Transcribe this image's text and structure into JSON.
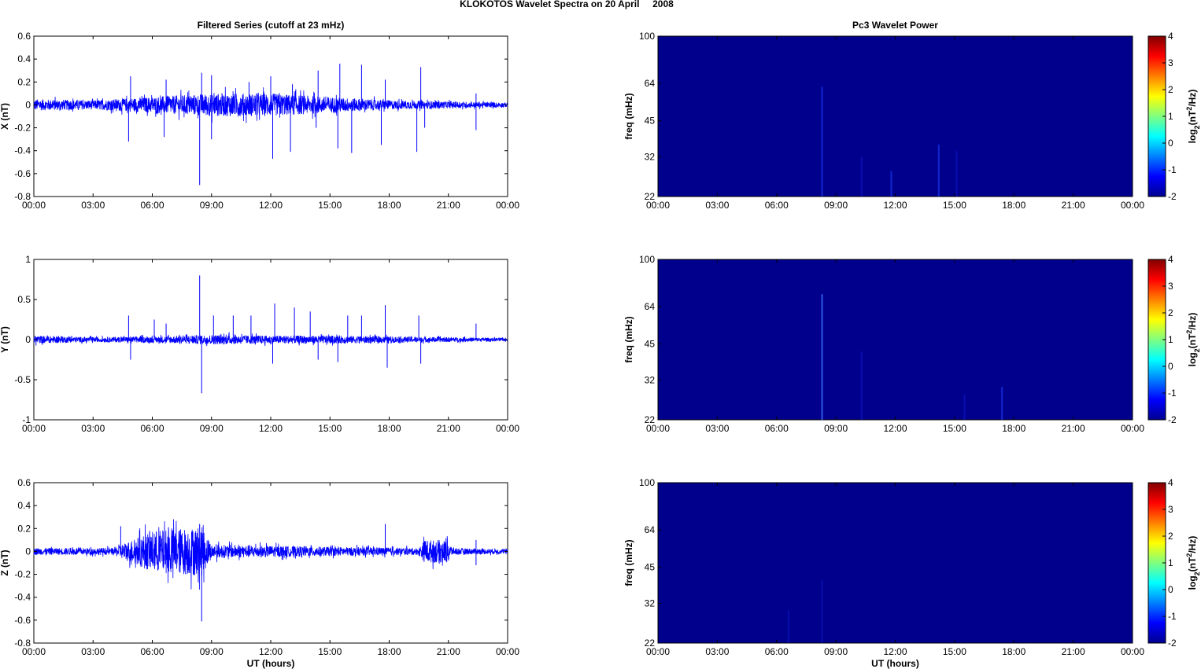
{
  "title": "KLOKOTOS Wavelet Spectra on 20 April     2008",
  "colors": {
    "trace": "#0000ff",
    "spectrum_bg": "#00008c",
    "axis": "#000000"
  },
  "chart_data": [
    {
      "type": "line",
      "panel": "time-series-x",
      "title": "Filtered Series (cutoff at 23 mHz)",
      "xlabel": "",
      "ylabel": "X (nT)",
      "xlim": [
        0,
        24
      ],
      "ylim": [
        -0.8,
        0.6
      ],
      "xticks": [
        "00:00",
        "03:00",
        "06:00",
        "09:00",
        "12:00",
        "15:00",
        "18:00",
        "21:00",
        "00:00"
      ],
      "yticks": [
        "0.6",
        "0.4",
        "0.2",
        "0",
        "-0.2",
        "-0.4",
        "-0.6",
        "-0.8"
      ],
      "ytick_values": [
        0.6,
        0.4,
        0.2,
        0,
        -0.2,
        -0.4,
        -0.6,
        -0.8
      ],
      "noise_envelope": [
        [
          0,
          0.05
        ],
        [
          3,
          0.04
        ],
        [
          6,
          0.07
        ],
        [
          9,
          0.1
        ],
        [
          12,
          0.1
        ],
        [
          14,
          0.08
        ],
        [
          18,
          0.04
        ],
        [
          21,
          0.03
        ],
        [
          24,
          0.02
        ]
      ],
      "spikes": [
        [
          4.9,
          0.25
        ],
        [
          4.8,
          -0.32
        ],
        [
          6.7,
          0.22
        ],
        [
          6.6,
          -0.28
        ],
        [
          8.4,
          -0.7
        ],
        [
          8.5,
          0.28
        ],
        [
          9.0,
          0.26
        ],
        [
          9.0,
          -0.3
        ],
        [
          10.9,
          0.2
        ],
        [
          12.1,
          -0.47
        ],
        [
          12.0,
          0.25
        ],
        [
          13.0,
          -0.41
        ],
        [
          13.1,
          0.18
        ],
        [
          14.4,
          0.3
        ],
        [
          14.3,
          -0.2
        ],
        [
          15.4,
          -0.38
        ],
        [
          15.5,
          0.36
        ],
        [
          16.1,
          -0.42
        ],
        [
          16.6,
          0.35
        ],
        [
          17.6,
          -0.35
        ],
        [
          17.8,
          0.22
        ],
        [
          19.4,
          -0.41
        ],
        [
          19.6,
          0.33
        ],
        [
          19.8,
          -0.2
        ],
        [
          22.4,
          -0.22
        ],
        [
          22.4,
          0.1
        ]
      ]
    },
    {
      "type": "line",
      "panel": "time-series-y",
      "xlabel": "",
      "ylabel": "Y (nT)",
      "xlim": [
        0,
        24
      ],
      "ylim": [
        -1,
        1
      ],
      "xticks": [
        "00:00",
        "03:00",
        "06:00",
        "09:00",
        "12:00",
        "15:00",
        "18:00",
        "21:00",
        "00:00"
      ],
      "yticks": [
        "1",
        "0.5",
        "0",
        "-0.5",
        "-1"
      ],
      "ytick_values": [
        1,
        0.5,
        0,
        -0.5,
        -1
      ],
      "noise_envelope": [
        [
          0,
          0.05
        ],
        [
          3,
          0.03
        ],
        [
          6,
          0.04
        ],
        [
          9,
          0.06
        ],
        [
          12,
          0.05
        ],
        [
          15,
          0.05
        ],
        [
          18,
          0.04
        ],
        [
          21,
          0.03
        ],
        [
          24,
          0.02
        ]
      ],
      "spikes": [
        [
          4.8,
          0.3
        ],
        [
          4.9,
          -0.25
        ],
        [
          6.1,
          0.25
        ],
        [
          6.7,
          0.2
        ],
        [
          8.4,
          0.8
        ],
        [
          8.5,
          -0.67
        ],
        [
          9.1,
          0.3
        ],
        [
          10.1,
          0.3
        ],
        [
          11.0,
          0.3
        ],
        [
          12.2,
          0.45
        ],
        [
          12.1,
          -0.3
        ],
        [
          13.2,
          0.4
        ],
        [
          14.0,
          0.35
        ],
        [
          14.4,
          -0.25
        ],
        [
          15.4,
          -0.28
        ],
        [
          15.9,
          0.3
        ],
        [
          16.6,
          0.3
        ],
        [
          17.8,
          0.43
        ],
        [
          17.9,
          -0.35
        ],
        [
          19.5,
          0.3
        ],
        [
          19.6,
          -0.3
        ],
        [
          22.4,
          0.2
        ]
      ]
    },
    {
      "type": "line",
      "panel": "time-series-z",
      "xlabel": "UT (hours)",
      "ylabel": "Z (nT)",
      "xlim": [
        0,
        24
      ],
      "ylim": [
        -0.8,
        0.6
      ],
      "xticks": [
        "00:00",
        "03:00",
        "06:00",
        "09:00",
        "12:00",
        "15:00",
        "18:00",
        "21:00",
        "00:00"
      ],
      "yticks": [
        "0.6",
        "0.4",
        "0.2",
        "0",
        "-0.2",
        "-0.4",
        "-0.6",
        "-0.8"
      ],
      "ytick_values": [
        0.6,
        0.4,
        0.2,
        0,
        -0.2,
        -0.4,
        -0.6,
        -0.8
      ],
      "noise_envelope": [
        [
          0,
          0.03
        ],
        [
          4,
          0.03
        ],
        [
          6,
          0.18
        ],
        [
          8.5,
          0.22
        ],
        [
          9,
          0.06
        ],
        [
          12,
          0.05
        ],
        [
          15,
          0.04
        ],
        [
          19.5,
          0.03
        ],
        [
          19.8,
          0.1
        ],
        [
          21,
          0.1
        ],
        [
          21.2,
          0.03
        ],
        [
          24,
          0.02
        ]
      ],
      "spikes": [
        [
          4.4,
          0.22
        ],
        [
          8.5,
          -0.61
        ],
        [
          8.4,
          0.24
        ],
        [
          17.8,
          0.24
        ],
        [
          22.4,
          0.1
        ],
        [
          22.4,
          -0.12
        ]
      ]
    },
    {
      "type": "heatmap",
      "panel": "wavelet-x",
      "title": "Pc3 Wavelet Power",
      "ylabel": "freq (mHz)",
      "yscale": "log",
      "ylim": [
        22,
        100
      ],
      "yticks": [
        "100",
        "64",
        "45",
        "32",
        "22"
      ],
      "ytick_values": [
        100,
        64,
        45,
        32,
        22
      ],
      "xlim": [
        0,
        24
      ],
      "xticks": [
        "00:00",
        "03:00",
        "06:00",
        "09:00",
        "12:00",
        "15:00",
        "18:00",
        "21:00",
        "00:00"
      ],
      "colorbar_label": "log2(nT2/Hz)",
      "clim": [
        -2,
        4
      ],
      "colorbar_ticks": [
        "4",
        "3",
        "2",
        "1",
        "0",
        "-1",
        "-2"
      ],
      "colorbar_tick_values": [
        4,
        3,
        2,
        1,
        0,
        -1,
        -2
      ],
      "background_value": -2,
      "features": [
        [
          8.3,
          62,
          -1.4
        ],
        [
          10.3,
          32,
          -1.6
        ],
        [
          11.8,
          28,
          -1.4
        ],
        [
          14.2,
          36,
          -1.4
        ],
        [
          15.1,
          34,
          -1.6
        ]
      ]
    },
    {
      "type": "heatmap",
      "panel": "wavelet-y",
      "ylabel": "freq (mHz)",
      "yscale": "log",
      "ylim": [
        22,
        100
      ],
      "yticks": [
        "100",
        "64",
        "45",
        "32",
        "22"
      ],
      "ytick_values": [
        100,
        64,
        45,
        32,
        22
      ],
      "xlim": [
        0,
        24
      ],
      "xticks": [
        "00:00",
        "03:00",
        "06:00",
        "09:00",
        "12:00",
        "15:00",
        "18:00",
        "21:00",
        "00:00"
      ],
      "colorbar_label": "log2(nT2/Hz)",
      "clim": [
        -2,
        4
      ],
      "colorbar_ticks": [
        "4",
        "3",
        "2",
        "1",
        "0",
        "-1",
        "-2"
      ],
      "colorbar_tick_values": [
        4,
        3,
        2,
        1,
        0,
        -1,
        -2
      ],
      "background_value": -2,
      "features": [
        [
          8.3,
          72,
          -1.0
        ],
        [
          10.3,
          42,
          -1.5
        ],
        [
          15.5,
          28,
          -1.6
        ],
        [
          17.4,
          30,
          -1.3
        ]
      ]
    },
    {
      "type": "heatmap",
      "panel": "wavelet-z",
      "xlabel": "UT (hours)",
      "ylabel": "freq (mHz)",
      "yscale": "log",
      "ylim": [
        22,
        100
      ],
      "yticks": [
        "100",
        "64",
        "45",
        "32",
        "22"
      ],
      "ytick_values": [
        100,
        64,
        45,
        32,
        22
      ],
      "xlim": [
        0,
        24
      ],
      "xticks": [
        "00:00",
        "03:00",
        "06:00",
        "09:00",
        "12:00",
        "15:00",
        "18:00",
        "21:00",
        "00:00"
      ],
      "colorbar_label": "log2(nT2/Hz)",
      "clim": [
        -2,
        4
      ],
      "colorbar_ticks": [
        "4",
        "3",
        "2",
        "1",
        "0",
        "-1",
        "-2"
      ],
      "colorbar_tick_values": [
        4,
        3,
        2,
        1,
        0,
        -1,
        -2
      ],
      "background_value": -2,
      "features": [
        [
          8.3,
          40,
          -1.5
        ],
        [
          6.6,
          30,
          -1.8
        ]
      ]
    }
  ]
}
